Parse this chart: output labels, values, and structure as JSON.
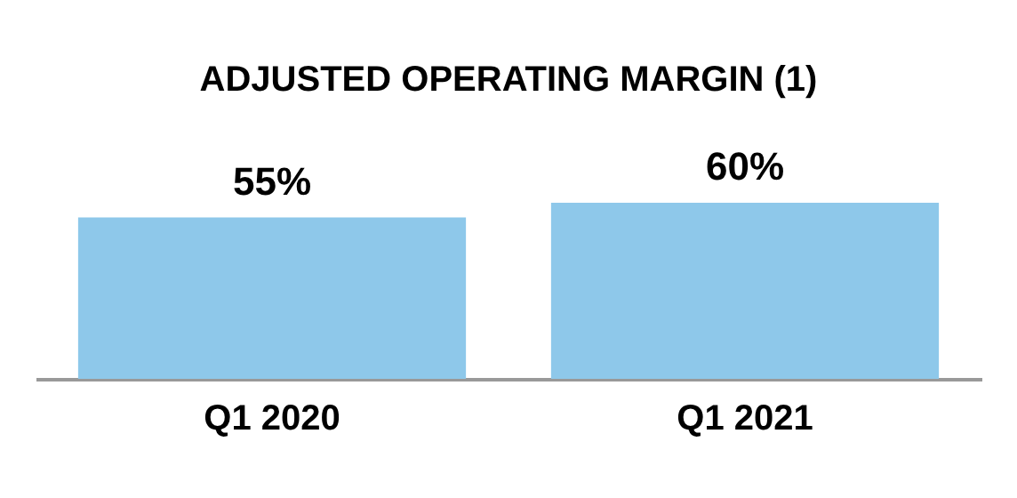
{
  "chart_data": {
    "type": "bar",
    "title": "ADJUSTED OPERATING MARGIN (1)",
    "categories": [
      "Q1 2020",
      "Q1 2021"
    ],
    "values": [
      55,
      60
    ],
    "value_labels": [
      "55%",
      "60%"
    ],
    "color": "#8ec8ea"
  }
}
